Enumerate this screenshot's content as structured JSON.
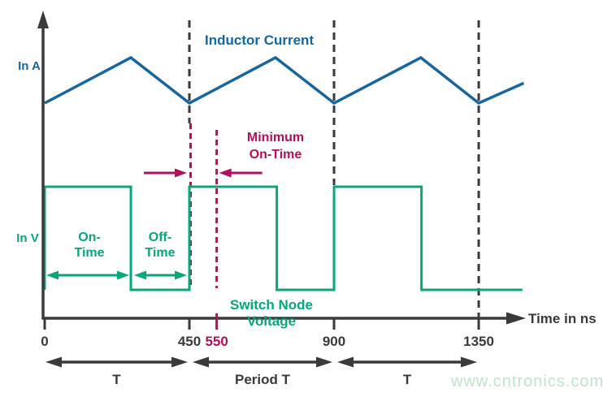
{
  "colors": {
    "blue": "#17669f",
    "green": "#07a77c",
    "crimson": "#b30f5b",
    "axis": "#3a3a3c",
    "watermark": "#bfe5cc"
  },
  "labels": {
    "y_axis_top": "In A",
    "y_axis_bottom": "In V",
    "inductor_current": "Inductor Current",
    "switch_node_voltage": "Switch Node Voltage",
    "min_on_time": "Minimum\nOn-Time",
    "on_time": "On-\nTime",
    "off_time": "Off-\nTime",
    "x_axis": "Time in ns",
    "watermark": "www.cntronics.com"
  },
  "axis": {
    "label": "Time in ns",
    "ticks": [
      {
        "label": "0",
        "t": 0,
        "crimson": false
      },
      {
        "label": "450",
        "t": 450,
        "crimson": false
      },
      {
        "label": "550",
        "t": 550,
        "t_draw": 535,
        "crimson": true
      },
      {
        "label": "900",
        "t": 900,
        "crimson": false
      },
      {
        "label": "1350",
        "t": 1350,
        "crimson": false
      }
    ]
  },
  "chart_data": {
    "type": "line",
    "title": "",
    "xlabel": "Time in ns",
    "ylabel_top": "In A",
    "ylabel_bottom": "In V",
    "x_ticks": [
      0,
      450,
      550,
      900,
      1350
    ],
    "grid": false,
    "series": [
      {
        "name": "Inductor Current",
        "shape": "triangle",
        "color_key": "blue",
        "x_ns": [
          0,
          268,
          450,
          718,
          900,
          1170,
          1350,
          1490
        ],
        "level": [
          0,
          1,
          0,
          1,
          0,
          1,
          0,
          0.44
        ]
      },
      {
        "name": "Switch Node Voltage",
        "shape": "square",
        "color_key": "green",
        "high_intervals_ns": [
          [
            0,
            268
          ],
          [
            450,
            722
          ],
          [
            900,
            1172
          ]
        ],
        "x_end_ns": 1486
      }
    ],
    "period_boundaries_ns": [
      450,
      900,
      1350
    ],
    "min_on_time_ns": [
      450,
      550
    ],
    "annotations": {
      "on_time_span_ns": [
        0,
        268
      ],
      "off_time_span_ns": [
        268,
        450
      ],
      "bottom_spans": [
        {
          "label": "T",
          "from_ns": 0,
          "to_ns": 450
        },
        {
          "label": "Period T",
          "from_ns": 450,
          "to_ns": 900
        },
        {
          "label": "T",
          "from_ns": 900,
          "to_ns": 1350
        }
      ]
    }
  }
}
